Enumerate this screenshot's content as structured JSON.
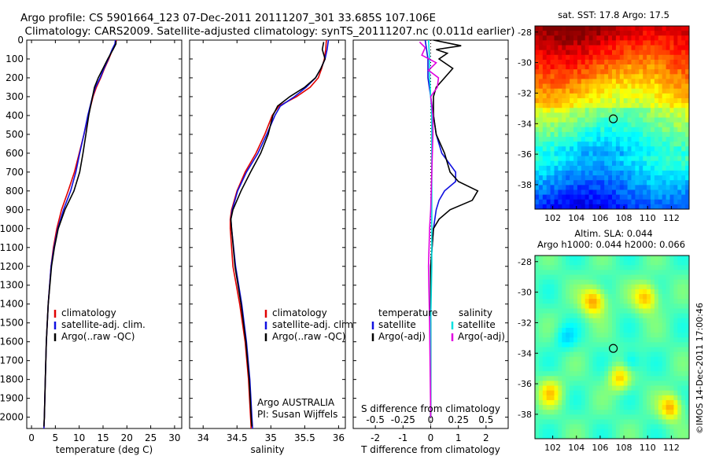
{
  "header": {
    "line1": "Argo profile: CS 5901664_123 07-Dec-2011 20111207_301 33.685S 107.106E",
    "line2": "Climatology: CARS2009. Satellite-adjusted climatology: synTS_20111207.nc (0.011d earlier)"
  },
  "colors": {
    "climatology": "#e00000",
    "satellite": "#1010e0",
    "argo": "#000000",
    "cyan": "#00e0e0",
    "magenta": "#e000e0"
  },
  "chart_data": [
    {
      "id": "temperature",
      "type": "line",
      "xlabel": "temperature (deg C)",
      "ylabel": "",
      "xlim": [
        -1,
        31.5
      ],
      "ylim": [
        2060,
        0
      ],
      "xticks": [
        0,
        5,
        10,
        15,
        20,
        25,
        30
      ],
      "xtick_labels": [
        "0",
        "5",
        "10",
        "15",
        "20",
        "25",
        "30"
      ],
      "yticks": [
        0,
        100,
        200,
        300,
        400,
        500,
        600,
        700,
        800,
        900,
        1000,
        1100,
        1200,
        1300,
        1400,
        1500,
        1600,
        1700,
        1800,
        1900,
        2000
      ],
      "ytick_labels": [
        "0",
        "100",
        "200",
        "300",
        "400",
        "500",
        "600",
        "700",
        "800",
        "900",
        "1000",
        "1100",
        "1200",
        "1300",
        "1400",
        "1500",
        "1600",
        "1700",
        "1800",
        "1900",
        "2000"
      ],
      "legend": [
        "climatology",
        "satellite-adj. clim.",
        "Argo(..raw -QC)"
      ],
      "series": [
        {
          "name": "climatology",
          "color": "#e00000",
          "depth": [
            0,
            20,
            50,
            100,
            150,
            200,
            250,
            300,
            400,
            500,
            600,
            700,
            800,
            900,
            1000,
            1100,
            1200,
            1400,
            1600,
            1800,
            2000,
            2060
          ],
          "values": [
            17.8,
            17.6,
            17.0,
            16.2,
            15.3,
            14.5,
            13.6,
            12.9,
            11.9,
            11.0,
            10.0,
            9.0,
            7.7,
            6.3,
            5.3,
            4.6,
            4.1,
            3.5,
            3.1,
            2.9,
            2.7,
            2.6
          ]
        },
        {
          "name": "satellite-adj. clim.",
          "color": "#1010e0",
          "depth": [
            0,
            20,
            50,
            100,
            150,
            200,
            250,
            300,
            400,
            500,
            600,
            700,
            800,
            900,
            1000,
            1100,
            1200,
            1400,
            1600,
            1800,
            2000,
            2060
          ],
          "values": [
            17.6,
            17.5,
            16.9,
            16.1,
            15.2,
            14.4,
            13.4,
            12.8,
            11.8,
            11.0,
            10.1,
            9.3,
            8.2,
            6.7,
            5.5,
            4.7,
            4.1,
            3.5,
            3.1,
            2.9,
            2.7,
            2.6
          ]
        },
        {
          "name": "Argo(..raw -QC)",
          "color": "#000000",
          "depth": [
            5,
            20,
            50,
            100,
            150,
            200,
            250,
            300,
            400,
            500,
            600,
            700,
            800,
            900,
            1000,
            1100,
            1200,
            1400,
            1600,
            1800,
            2000,
            2050
          ],
          "values": [
            17.7,
            17.7,
            17.1,
            16.0,
            15.0,
            14.0,
            13.2,
            12.8,
            12.0,
            11.4,
            10.8,
            10.1,
            8.9,
            7.0,
            5.6,
            4.8,
            4.2,
            3.5,
            3.1,
            2.9,
            2.7,
            2.6
          ]
        }
      ]
    },
    {
      "id": "salinity",
      "type": "line",
      "xlabel": "salinity",
      "ylabel": "",
      "xlim": [
        33.8,
        36.1
      ],
      "ylim": [
        2060,
        0
      ],
      "xticks": [
        34,
        34.5,
        35,
        35.5,
        36
      ],
      "xtick_labels": [
        "34",
        "34.5",
        "35",
        "35.5",
        "36"
      ],
      "legend": [
        "climatology",
        "satellite-adj. clim.",
        "Argo(..raw -QC)"
      ],
      "annotations": [
        "Argo AUSTRALIA",
        "PI: Susan Wijffels"
      ],
      "series": [
        {
          "name": "climatology",
          "color": "#e00000",
          "depth": [
            0,
            50,
            100,
            150,
            200,
            250,
            300,
            350,
            400,
            500,
            600,
            700,
            800,
            900,
            950,
            1000,
            1200,
            1400,
            1600,
            1800,
            2000,
            2060
          ],
          "values": [
            35.82,
            35.81,
            35.79,
            35.75,
            35.7,
            35.58,
            35.38,
            35.12,
            35.02,
            34.91,
            34.78,
            34.62,
            34.5,
            34.42,
            34.4,
            34.4,
            34.44,
            34.54,
            34.62,
            34.67,
            34.7,
            34.71
          ]
        },
        {
          "name": "satellite-adj. clim.",
          "color": "#1010e0",
          "depth": [
            0,
            50,
            100,
            150,
            200,
            250,
            300,
            350,
            400,
            500,
            600,
            700,
            800,
            900,
            950,
            1000,
            1200,
            1400,
            1600,
            1800,
            2000,
            2060
          ],
          "values": [
            35.85,
            35.83,
            35.8,
            35.74,
            35.66,
            35.52,
            35.35,
            35.14,
            35.06,
            34.94,
            34.81,
            34.64,
            34.51,
            34.43,
            34.41,
            34.42,
            34.48,
            34.57,
            34.64,
            34.69,
            34.72,
            34.73
          ]
        },
        {
          "name": "Argo(..raw -QC)",
          "color": "#000000",
          "depth": [
            10,
            50,
            100,
            150,
            200,
            250,
            300,
            350,
            400,
            500,
            600,
            700,
            800,
            900,
            950,
            1000,
            1200,
            1400,
            1600,
            1800,
            2000,
            2050
          ],
          "values": [
            35.78,
            35.76,
            35.8,
            35.74,
            35.66,
            35.5,
            35.28,
            35.1,
            35.03,
            34.96,
            34.85,
            34.7,
            34.56,
            34.44,
            34.41,
            34.42,
            34.47,
            34.56,
            34.63,
            34.68,
            34.71,
            34.72
          ]
        }
      ]
    },
    {
      "id": "difference",
      "type": "line",
      "xlabel": "T difference from climatology",
      "xlabel_top": "S difference from climatology",
      "xlim": [
        -2.8,
        2.8
      ],
      "ylim": [
        2060,
        0
      ],
      "xticks": [
        -2,
        -1,
        0,
        1,
        2
      ],
      "xtick_labels": [
        "-2",
        "-1",
        "0",
        "1",
        "2"
      ],
      "top_ticks": [
        -0.5,
        -0.25,
        0,
        0.25,
        0.5
      ],
      "top_tick_labels": [
        "-0.5",
        "-0.25",
        "0",
        "0.25",
        "0.5"
      ],
      "legend_temperature": {
        "title": "temperature",
        "items": [
          "satellite",
          "Argo(-adj)"
        ]
      },
      "legend_salinity": {
        "title": "salinity",
        "items": [
          "satellite",
          "Argo(-adj)"
        ]
      },
      "series": [
        {
          "name": "T satellite",
          "color": "#1010e0",
          "depth": [
            0,
            100,
            200,
            300,
            400,
            500,
            600,
            700,
            750,
            800,
            850,
            900,
            1000,
            1200,
            1500,
            2000
          ],
          "values": [
            -0.2,
            -0.1,
            -0.1,
            0.0,
            0.1,
            0.2,
            0.4,
            0.9,
            0.9,
            0.5,
            0.3,
            0.2,
            0.1,
            0.0,
            0.0,
            0.0
          ]
        },
        {
          "name": "T Argo(-adj)",
          "color": "#000000",
          "depth": [
            0,
            30,
            50,
            70,
            100,
            150,
            200,
            250,
            300,
            400,
            500,
            600,
            650,
            700,
            750,
            800,
            850,
            900,
            950,
            1000,
            1200,
            1500,
            2000
          ],
          "values": [
            0.1,
            1.1,
            0.2,
            0.6,
            0.3,
            0.8,
            0.5,
            0.2,
            0.1,
            0.1,
            0.2,
            0.5,
            0.6,
            0.7,
            1.0,
            1.7,
            1.5,
            0.7,
            0.3,
            0.1,
            0.0,
            0.0,
            0.0
          ]
        },
        {
          "name": "S satellite",
          "color": "#00e0e0",
          "depth": [
            0,
            100,
            200,
            300,
            400,
            600,
            800,
            1000,
            1200,
            1500,
            2000
          ],
          "values": [
            -0.02,
            -0.01,
            -0.01,
            0.0,
            0.01,
            0.01,
            0.01,
            0.01,
            0.01,
            0.0,
            0.0
          ]
        },
        {
          "name": "S Argo(-adj)",
          "color": "#e000e0",
          "depth": [
            10,
            40,
            80,
            120,
            160,
            200,
            250,
            300,
            400,
            500,
            700,
            900,
            1000,
            1200,
            1500,
            2000
          ],
          "values": [
            -0.1,
            -0.05,
            -0.08,
            0.05,
            -0.02,
            0.07,
            0.06,
            0.0,
            0.02,
            0.02,
            0.01,
            0.0,
            -0.01,
            -0.02,
            -0.01,
            0.0
          ]
        }
      ]
    },
    {
      "id": "sst-map",
      "type": "heatmap",
      "title": "sat. SST: 17.8  Argo: 17.5",
      "xlim": [
        100.5,
        113.5
      ],
      "ylim": [
        -39.6,
        -27.6
      ],
      "xticks": [
        102,
        104,
        106,
        108,
        110,
        112
      ],
      "yticks": [
        -28,
        -30,
        -32,
        -34,
        -36,
        -38
      ],
      "marker": {
        "lon": 107.106,
        "lat": -33.685
      }
    },
    {
      "id": "sla-map",
      "type": "heatmap",
      "title_line1": "Altim. SLA: 0.044",
      "title_line2": "Argo h1000: 0.044 h2000: 0.066",
      "xlim": [
        100.5,
        113.5
      ],
      "ylim": [
        -39.6,
        -27.6
      ],
      "xticks": [
        102,
        104,
        106,
        108,
        110,
        112
      ],
      "yticks": [
        -28,
        -30,
        -32,
        -34,
        -36,
        -38
      ],
      "marker": {
        "lon": 107.106,
        "lat": -33.685
      }
    }
  ],
  "footer": {
    "stamp": "©IMOS 14-Dec-2011 17:00:46"
  }
}
